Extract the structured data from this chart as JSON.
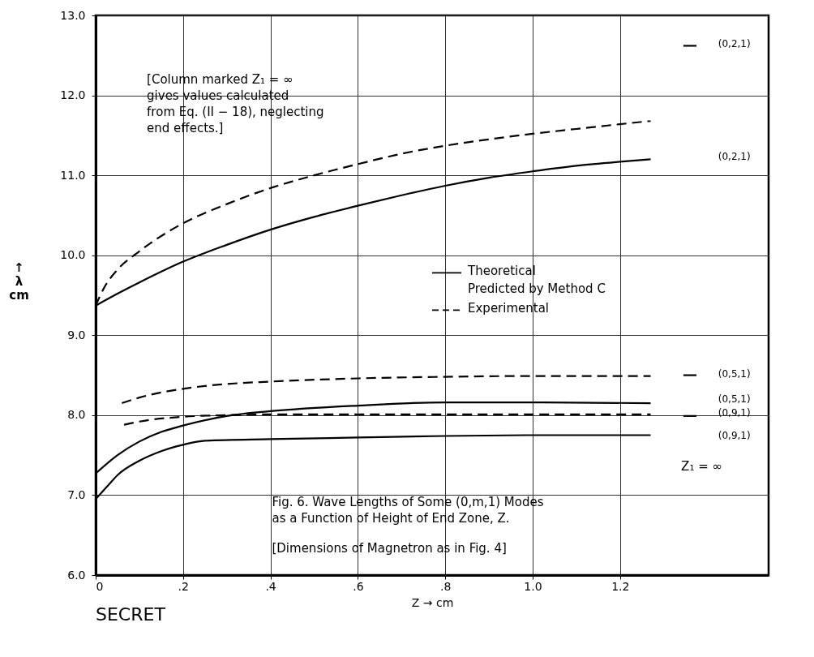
{
  "chart_data": {
    "type": "line",
    "title": "Fig. 6.  Wave Lengths of Some (0,m,1) Modes\nas a Function of Height of End Zone, Z.",
    "subtitle": "[Dimensions of Magnetron as in Fig. 4]",
    "xlabel": "Z → cm",
    "ylabel": "↑\nλ\ncm",
    "xlim": [
      0,
      1.54
    ],
    "ylim": [
      6,
      13
    ],
    "xticks": [
      0,
      {
        "value": 0.2,
        "label": ".2"
      },
      {
        "value": 0.4,
        "label": ".4"
      },
      {
        "value": 0.6,
        "label": ".6"
      },
      {
        "value": 0.8,
        "label": ".8"
      },
      {
        "value": 1.0,
        "label": "1.0"
      },
      {
        "value": 1.2,
        "label": "1.2"
      }
    ],
    "yticks": [
      {
        "value": 6,
        "label": "6.0"
      },
      {
        "value": 7,
        "label": "7.0"
      },
      {
        "value": 8,
        "label": "8.0"
      },
      {
        "value": 9,
        "label": "9.0"
      },
      {
        "value": 10,
        "label": "10.0"
      },
      {
        "value": 11,
        "label": "11.0"
      },
      {
        "value": 12,
        "label": "12.0"
      },
      {
        "value": 13,
        "label": "13.0"
      }
    ],
    "grid": true,
    "legend": "center",
    "series": [
      {
        "name": "Theoretical\nPredicted by Method C",
        "line_style": "solid",
        "color": "#000000",
        "x": [
          0,
          0.05,
          0.1,
          0.2,
          0.3,
          0.4,
          0.5,
          0.6,
          0.7,
          0.8,
          0.9,
          1.0,
          1.1,
          1.2,
          1.27
        ],
        "values": [
          9.37,
          9.52,
          9.66,
          9.92,
          10.13,
          10.32,
          10.48,
          10.62,
          10.75,
          10.87,
          10.97,
          11.05,
          11.12,
          11.17,
          11.2
        ]
      },
      {
        "name": "Experimental",
        "line_style": "dashed",
        "color": "#000000",
        "x": [
          0,
          0.02,
          0.05,
          0.1,
          0.2,
          0.3,
          0.4,
          0.5,
          0.6,
          0.7,
          0.8,
          0.9,
          1.0,
          1.1,
          1.2,
          1.27
        ],
        "values": [
          9.37,
          9.6,
          9.82,
          10.05,
          10.4,
          10.64,
          10.84,
          11.0,
          11.14,
          11.27,
          11.37,
          11.45,
          11.52,
          11.58,
          11.64,
          11.68
        ]
      },
      {
        "line_style": "solid",
        "color": "#000000",
        "x": [
          0,
          0.05,
          0.1,
          0.15,
          0.2,
          0.3,
          0.4,
          0.6,
          0.8,
          1.0,
          1.27
        ],
        "values": [
          7.27,
          7.5,
          7.67,
          7.79,
          7.87,
          7.99,
          8.05,
          8.12,
          8.16,
          8.16,
          8.15
        ]
      },
      {
        "line_style": "solid",
        "color": "#000000",
        "x": [
          0,
          0.03,
          0.05,
          0.1,
          0.15,
          0.2,
          0.25,
          0.4,
          0.6,
          0.8,
          1.0,
          1.27
        ],
        "values": [
          6.95,
          7.13,
          7.25,
          7.43,
          7.55,
          7.63,
          7.68,
          7.7,
          7.72,
          7.74,
          7.75,
          7.75
        ]
      },
      {
        "line_style": "dashed",
        "color": "#000000",
        "x": [
          0.06,
          0.1,
          0.2,
          0.3,
          0.4,
          0.6,
          0.8,
          1.0,
          1.27
        ],
        "values": [
          8.15,
          8.22,
          8.33,
          8.39,
          8.42,
          8.46,
          8.48,
          8.49,
          8.49
        ]
      },
      {
        "line_style": "dashed",
        "color": "#000000",
        "x": [
          0.065,
          0.1,
          0.2,
          0.3,
          0.4,
          0.6,
          1.0,
          1.27
        ],
        "values": [
          7.88,
          7.92,
          7.98,
          8.0,
          8.01,
          8.01,
          8.01,
          8.01
        ]
      },
      {
        "line_style": "solid",
        "color": "#000000",
        "x": [
          1.345,
          1.375
        ],
        "values": [
          12.62,
          12.62
        ]
      },
      {
        "line_style": "solid",
        "color": "#000000",
        "x": [
          1.345,
          1.375
        ],
        "values": [
          8.5,
          8.5
        ]
      },
      {
        "line_style": "solid",
        "color": "#000000",
        "x": [
          1.345,
          1.375
        ],
        "values": [
          7.99,
          7.99
        ]
      }
    ],
    "annotations": [
      "[Column marked Z₁ = ∞\ngives values calculated\nfrom Eq. (II − 18), neglecting\nend effects.]",
      "SECRET",
      "(0,2,1)",
      "(0,2,1)",
      "(0,5,1)",
      "(0,5,1)",
      "(0,9,1)",
      "(0,9,1)",
      "Z₁ = ∞"
    ]
  }
}
